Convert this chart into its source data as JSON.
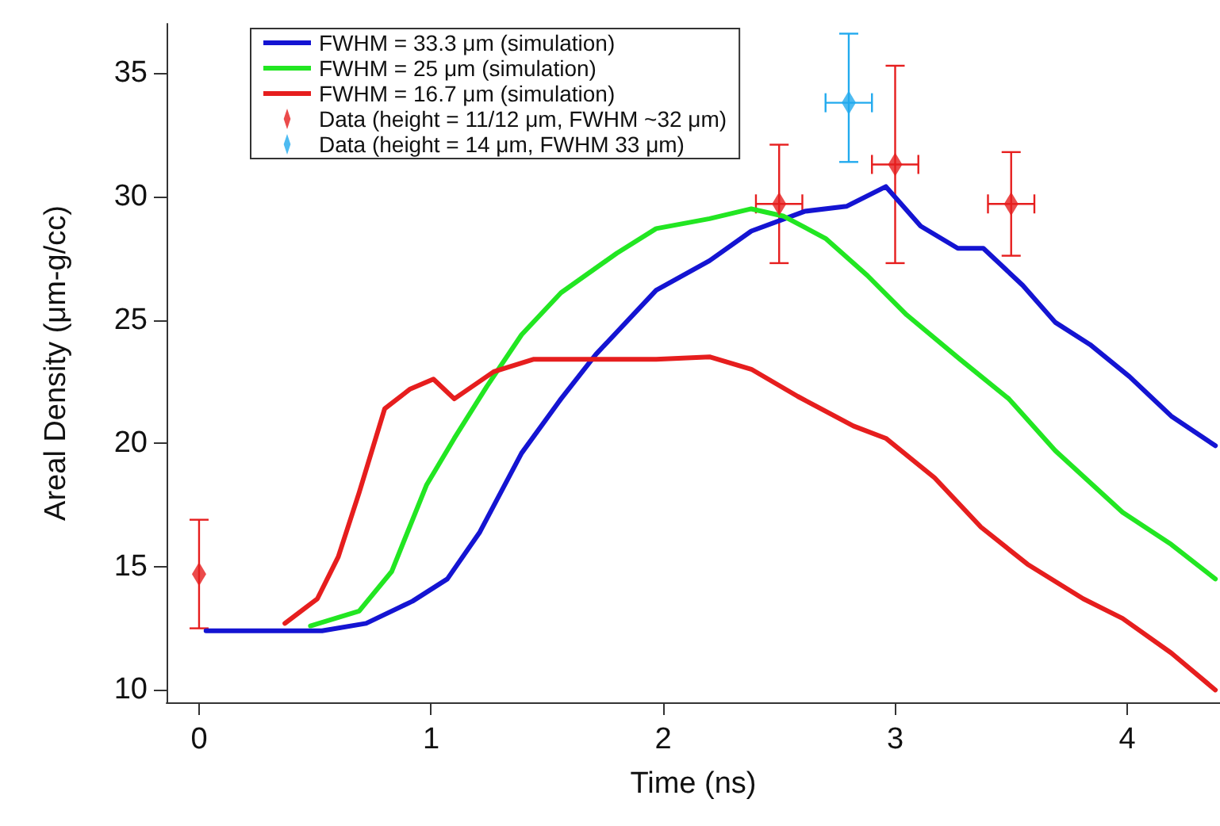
{
  "chart_data": {
    "type": "line",
    "xlabel": "Time (ns)",
    "ylabel": "Areal Density (μm-g/cc)",
    "xlim": [
      -0.14,
      4.4
    ],
    "xticks": [
      0,
      1,
      2,
      3,
      4
    ],
    "ylim": [
      9.5,
      37
    ],
    "yticks": [
      10,
      15,
      20,
      25,
      30,
      35
    ],
    "grid": false,
    "legend": "top left",
    "line_style": "solid",
    "series": [
      {
        "name": "FWHM = 33.3 μm (simulation)",
        "color": "#1414d2",
        "x": [
          0.03,
          0.53,
          0.72,
          0.92,
          1.07,
          1.21,
          1.39,
          1.56,
          1.71,
          1.97,
          2.2,
          2.38,
          2.61,
          2.79,
          2.96,
          3.11,
          3.27,
          3.38,
          3.55,
          3.69,
          3.84,
          4.01,
          4.19,
          4.38
        ],
        "values": [
          12.4,
          12.4,
          12.7,
          13.6,
          14.5,
          16.4,
          19.6,
          21.8,
          23.6,
          26.2,
          27.4,
          28.6,
          29.4,
          29.6,
          30.4,
          28.8,
          27.9,
          27.9,
          26.4,
          24.9,
          24.0,
          22.7,
          21.1,
          19.9
        ]
      },
      {
        "name": "FWHM = 25 μm (simulation)",
        "color": "#22e622",
        "x": [
          0.48,
          0.69,
          0.83,
          0.98,
          1.1,
          1.24,
          1.39,
          1.56,
          1.8,
          1.97,
          2.2,
          2.38,
          2.52,
          2.7,
          2.88,
          3.05,
          3.28,
          3.49,
          3.69,
          3.98,
          4.19,
          4.38
        ],
        "values": [
          12.6,
          13.2,
          14.8,
          18.3,
          20.2,
          22.3,
          24.4,
          26.1,
          27.7,
          28.7,
          29.1,
          29.5,
          29.2,
          28.3,
          26.8,
          25.2,
          23.4,
          21.8,
          19.7,
          17.2,
          15.9,
          14.5
        ]
      },
      {
        "name": "FWHM = 16.7 μm (simulation)",
        "color": "#e61e1e",
        "x": [
          0.37,
          0.51,
          0.6,
          0.69,
          0.8,
          0.91,
          1.01,
          1.1,
          1.27,
          1.44,
          1.68,
          1.97,
          2.2,
          2.38,
          2.58,
          2.82,
          2.96,
          3.17,
          3.37,
          3.57,
          3.81,
          3.98,
          4.19,
          4.38
        ],
        "values": [
          12.7,
          13.7,
          15.4,
          18.0,
          21.4,
          22.2,
          22.6,
          21.8,
          22.9,
          23.4,
          23.4,
          23.4,
          23.5,
          23.0,
          21.9,
          20.7,
          20.2,
          18.6,
          16.6,
          15.1,
          13.7,
          12.9,
          11.5,
          10.0
        ]
      },
      {
        "name": "Data (height = 11/12 μm, FWHM ~32 μm)",
        "type": "scatter",
        "marker": "diamond",
        "color": "#e61e1e",
        "x": [
          0,
          2.5,
          3.0,
          3.5
        ],
        "values": [
          14.7,
          29.7,
          31.3,
          29.7
        ],
        "errors": [
          [
            12.5,
            16.9
          ],
          [
            27.3,
            32.1
          ],
          [
            27.3,
            35.3
          ],
          [
            27.6,
            31.8
          ]
        ],
        "xerrors": [
          null,
          0.1,
          0.1,
          0.1
        ]
      },
      {
        "name": "Data (height = 14 μm, FWHM 33 μm)",
        "type": "scatter",
        "marker": "diamond",
        "color": "#22aaee",
        "x": [
          2.8
        ],
        "values": [
          33.8
        ],
        "errors": [
          [
            31.4,
            36.6
          ]
        ],
        "xerrors": [
          0.1
        ]
      }
    ]
  }
}
